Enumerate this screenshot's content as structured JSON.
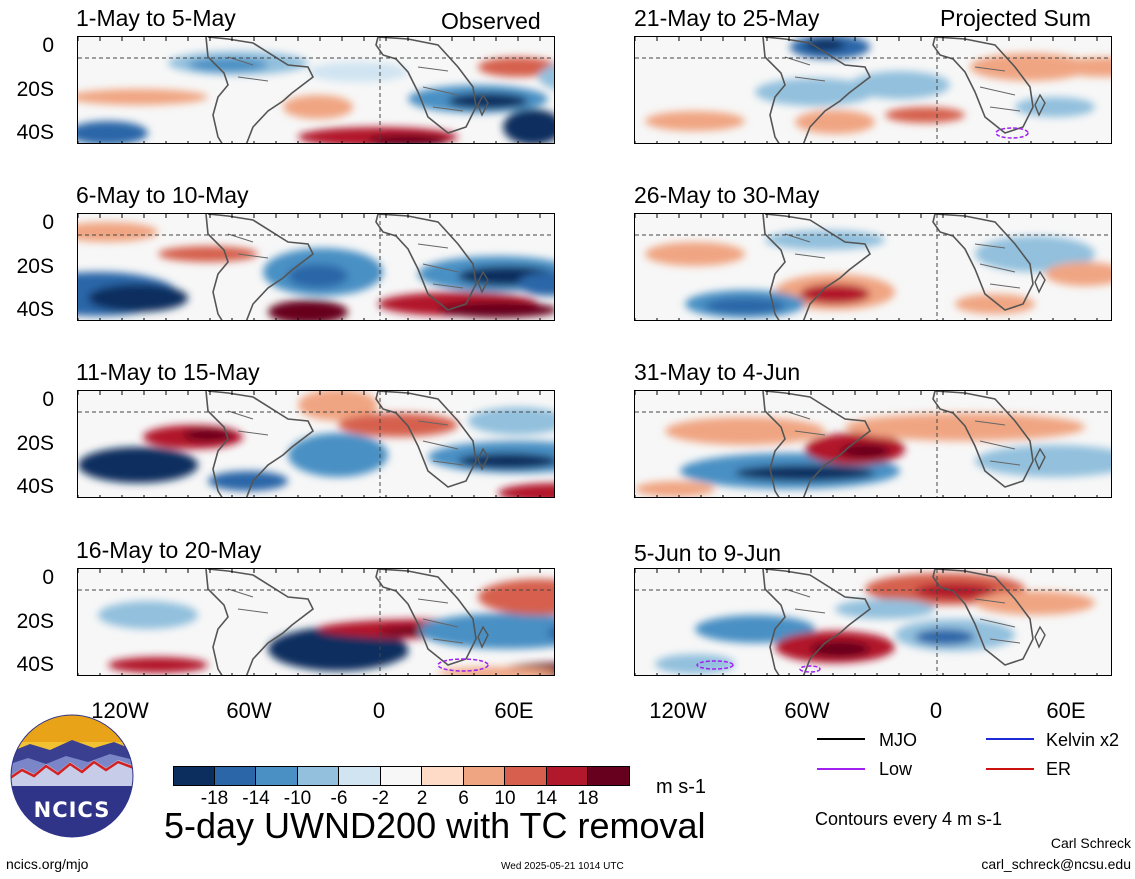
{
  "header": {
    "observed_label": "Observed",
    "projected_label": "Projected Sum"
  },
  "panels_left": [
    {
      "title": "1-May to 5-May"
    },
    {
      "title": "6-May to 10-May"
    },
    {
      "title": "11-May to 15-May"
    },
    {
      "title": "16-May to 20-May"
    }
  ],
  "panels_right": [
    {
      "title": "21-May to 25-May"
    },
    {
      "title": "26-May to 30-May"
    },
    {
      "title": "31-May to 4-Jun"
    },
    {
      "title": "5-Jun to 9-Jun"
    }
  ],
  "lat_labels": [
    "0",
    "20S",
    "40S"
  ],
  "lon_labels": [
    "120W",
    "60W",
    "0",
    "60E"
  ],
  "colorbar": {
    "colors": [
      "#0b2e5e",
      "#2a66a8",
      "#4a90c4",
      "#92c0dd",
      "#d0e4f1",
      "#f7f7f7",
      "#fddbc7",
      "#f0a582",
      "#d6604d",
      "#b2182b",
      "#67001f"
    ],
    "labels": [
      "-18",
      "-14",
      "-10",
      "-6",
      "-2",
      "2",
      "6",
      "10",
      "14",
      "18"
    ],
    "units": "m s-1"
  },
  "legend": {
    "items": [
      {
        "label": "MJO",
        "color": "#000000"
      },
      {
        "label": "Kelvin x2",
        "color": "#1d2bd6"
      },
      {
        "label": "Low",
        "color": "#a020f0"
      },
      {
        "label": "ER",
        "color": "#cc1111"
      }
    ],
    "contours_note": "Contours every 4 m s-1"
  },
  "main_title": "5-day UWND200 with TC removal",
  "logo_text": "NCICS",
  "footer": {
    "site": "ncics.org/mjo",
    "timestamp": "Wed 2025-05-21 1014 UTC",
    "author": "Carl Schreck",
    "email": "carl_schreck@ncsu.edu"
  }
}
